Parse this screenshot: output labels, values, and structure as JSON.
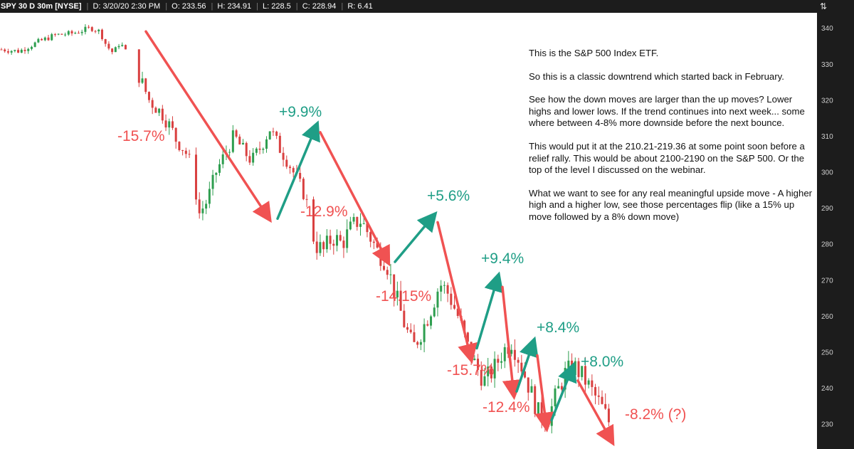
{
  "header": {
    "symbol": "SPY 30 D 30m [NYSE]",
    "date": "D: 3/20/20 2:30 PM",
    "open": "O: 233.56",
    "high": "H: 234.91",
    "low": "L: 228.5",
    "close": "C: 228.94",
    "range": "R: 6.41"
  },
  "axis_icon": "scale-icon",
  "colors": {
    "up_candle": "#2e9e4f",
    "down_candle": "#d94040",
    "down_arrow": "#f05252",
    "up_arrow": "#1f9e86",
    "background": "#ffffff",
    "axis_bg": "#1c1c1c"
  },
  "note": [
    "This is the S&P 500 Index ETF.",
    "So this is a classic downtrend which started back in February.",
    "See how the down moves are larger than the up moves? Lower highs and lower lows. If the trend continues into next week... some where between 4-8% more downside before the next bounce.",
    "This would put it at the 210.21-219.36 at some point soon before a relief rally. This would be about 2100-2190 on the S&P 500. Or the top of the level I discussed on the webinar.",
    "What we want to see for any real meaningful upside move - A higher high and a higher low, see those percentages flip (like a 15% up move followed by a 8% down move)"
  ],
  "chart_data": {
    "type": "candlestick",
    "ylim": [
      224,
      343
    ],
    "y_ticks": [
      230,
      240,
      250,
      260,
      270,
      280,
      290,
      300,
      310,
      320,
      330,
      340
    ],
    "price_path": [
      [
        0,
        334
      ],
      [
        0.04,
        333.5
      ],
      [
        0.08,
        336
      ],
      [
        0.12,
        338
      ],
      [
        0.16,
        338.5
      ],
      [
        0.2,
        340
      ],
      [
        0.22,
        339
      ],
      [
        0.235,
        335
      ],
      [
        0.25,
        333
      ],
      [
        0.265,
        336
      ],
      [
        0.28,
        333
      ],
      [
        0.31,
        326
      ],
      [
        0.33,
        320
      ],
      [
        0.36,
        316
      ],
      [
        0.38,
        312
      ],
      [
        0.39,
        309
      ],
      [
        0.41,
        306
      ],
      [
        0.43,
        300
      ],
      [
        0.44,
        288
      ],
      [
        0.46,
        292
      ],
      [
        0.48,
        300
      ],
      [
        0.5,
        305
      ],
      [
        0.52,
        310
      ],
      [
        0.54,
        306
      ],
      [
        0.56,
        303
      ],
      [
        0.58,
        307
      ],
      [
        0.6,
        312
      ],
      [
        0.62,
        307
      ],
      [
        0.64,
        303
      ],
      [
        0.66,
        298
      ],
      [
        0.68,
        293
      ],
      [
        0.7,
        280
      ],
      [
        0.72,
        278
      ],
      [
        0.74,
        282
      ],
      [
        0.76,
        280
      ],
      [
        0.78,
        284
      ],
      [
        0.8,
        287
      ],
      [
        0.82,
        283
      ],
      [
        0.84,
        278
      ],
      [
        0.86,
        275
      ],
      [
        0.88,
        266
      ],
      [
        0.9,
        258
      ],
      [
        0.92,
        251
      ],
      [
        0.94,
        256
      ],
      [
        0.96,
        262
      ],
      [
        0.98,
        269
      ],
      [
        1.0,
        266
      ],
      [
        1.02,
        260
      ],
      [
        1.04,
        252
      ],
      [
        1.06,
        246
      ],
      [
        1.08,
        242
      ],
      [
        1.1,
        245
      ],
      [
        1.12,
        250
      ],
      [
        1.14,
        253
      ],
      [
        1.16,
        247
      ],
      [
        1.18,
        240
      ],
      [
        1.2,
        233
      ],
      [
        1.22,
        231
      ],
      [
        1.24,
        238
      ],
      [
        1.26,
        244
      ],
      [
        1.28,
        246
      ],
      [
        1.3,
        243
      ],
      [
        1.32,
        239
      ],
      [
        1.34,
        235
      ],
      [
        1.36,
        230
      ]
    ],
    "moves": [
      {
        "label": "-15.7%",
        "direction": "down",
        "from_price": 339,
        "to_price": 287
      },
      {
        "label": "+9.9%",
        "direction": "up",
        "from_price": 287,
        "to_price": 313
      },
      {
        "label": "-12.9%",
        "direction": "down",
        "from_price": 311,
        "to_price": 275
      },
      {
        "label": "+5.6%",
        "direction": "up",
        "from_price": 275,
        "to_price": 288
      },
      {
        "label": "-14.15%",
        "direction": "down",
        "from_price": 286,
        "to_price": 248
      },
      {
        "label": "+9.4%",
        "direction": "up",
        "from_price": 251,
        "to_price": 271
      },
      {
        "label": "-15.7%",
        "direction": "down",
        "from_price": 268,
        "to_price": 238
      },
      {
        "label": "+8.4%",
        "direction": "up",
        "from_price": 239,
        "to_price": 253
      },
      {
        "label": "-12.4%",
        "direction": "down",
        "from_price": 249,
        "to_price": 229
      },
      {
        "label": "+8.0%",
        "direction": "up",
        "from_price": 231,
        "to_price": 246
      },
      {
        "label": "-8.2% (?)",
        "direction": "down",
        "from_price": 242,
        "to_price": 225
      }
    ]
  }
}
